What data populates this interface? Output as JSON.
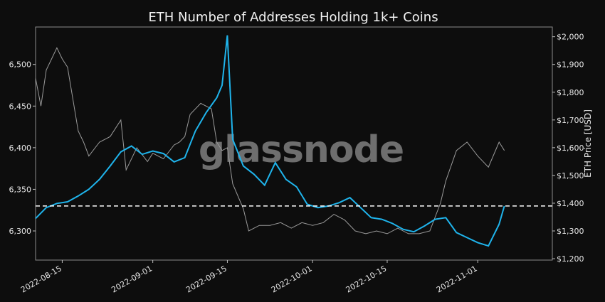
{
  "chart_data": {
    "type": "line",
    "title": "ETH Number of Addresses Holding 1k+ Coins",
    "watermark": "glassnode",
    "x_tick_labels": [
      "2022-08-15",
      "2022-09-01",
      "2022-09-15",
      "2022-10-01",
      "2022-10-15",
      "2022-11-01"
    ],
    "x_ticks": [
      "2022-08-15",
      "2022-09-01",
      "2022-09-15",
      "2022-10-01",
      "2022-10-15",
      "2022-11-01"
    ],
    "xlim": [
      "2022-08-10",
      "2022-11-15"
    ],
    "y_left": {
      "label": "",
      "lim": [
        6265,
        6545
      ],
      "ticks": [
        6300,
        6350,
        6400,
        6450,
        6500
      ],
      "tick_labels": [
        "6,300",
        "6,350",
        "6,400",
        "6,450",
        "6,500"
      ]
    },
    "y_right": {
      "label": "ETH Price [USD]",
      "lim": [
        1195,
        2035
      ],
      "ticks": [
        1200,
        1300,
        1400,
        1500,
        1600,
        1700,
        1800,
        1900,
        2000
      ],
      "tick_labels": [
        "$1,200",
        "$1,300",
        "$1,400",
        "$1,500",
        "$1,600",
        "$1,700",
        "$1,800",
        "$1,900",
        "$2,000"
      ]
    },
    "reference_line": {
      "axis": "left",
      "value": 6330,
      "style": "dashed"
    },
    "series": [
      {
        "name": "",
        "axis": "left",
        "color": "#1fb4ec",
        "x": [
          "2022-08-10",
          "2022-08-12",
          "2022-08-14",
          "2022-08-16",
          "2022-08-18",
          "2022-08-20",
          "2022-08-22",
          "2022-08-24",
          "2022-08-26",
          "2022-08-28",
          "2022-08-30",
          "2022-09-01",
          "2022-09-03",
          "2022-09-05",
          "2022-09-07",
          "2022-09-09",
          "2022-09-11",
          "2022-09-13",
          "2022-09-14",
          "2022-09-15",
          "2022-09-16",
          "2022-09-18",
          "2022-09-20",
          "2022-09-22",
          "2022-09-24",
          "2022-09-26",
          "2022-09-28",
          "2022-09-30",
          "2022-10-02",
          "2022-10-04",
          "2022-10-06",
          "2022-10-08",
          "2022-10-10",
          "2022-10-12",
          "2022-10-14",
          "2022-10-16",
          "2022-10-18",
          "2022-10-20",
          "2022-10-22",
          "2022-10-24",
          "2022-10-26",
          "2022-10-28",
          "2022-10-30",
          "2022-11-01",
          "2022-11-03",
          "2022-11-05",
          "2022-11-06"
        ],
        "y": [
          6315,
          6328,
          6333,
          6335,
          6342,
          6350,
          6362,
          6378,
          6395,
          6402,
          6392,
          6396,
          6393,
          6383,
          6388,
          6420,
          6442,
          6460,
          6475,
          6535,
          6410,
          6378,
          6368,
          6355,
          6382,
          6362,
          6353,
          6332,
          6328,
          6330,
          6334,
          6340,
          6328,
          6316,
          6314,
          6309,
          6302,
          6299,
          6306,
          6314,
          6316,
          6298,
          6292,
          6286,
          6282,
          6308,
          6330
        ]
      },
      {
        "name": "ETH Price [USD]",
        "axis": "right",
        "color": "#9a9a9a",
        "x": [
          "2022-08-10",
          "2022-08-11",
          "2022-08-12",
          "2022-08-13",
          "2022-08-14",
          "2022-08-15",
          "2022-08-16",
          "2022-08-18",
          "2022-08-19",
          "2022-08-20",
          "2022-08-22",
          "2022-08-24",
          "2022-08-26",
          "2022-08-27",
          "2022-08-29",
          "2022-08-31",
          "2022-09-01",
          "2022-09-03",
          "2022-09-05",
          "2022-09-06",
          "2022-09-07",
          "2022-09-08",
          "2022-09-10",
          "2022-09-12",
          "2022-09-13",
          "2022-09-14",
          "2022-09-15",
          "2022-09-16",
          "2022-09-18",
          "2022-09-19",
          "2022-09-21",
          "2022-09-23",
          "2022-09-25",
          "2022-09-27",
          "2022-09-29",
          "2022-10-01",
          "2022-10-03",
          "2022-10-05",
          "2022-10-07",
          "2022-10-09",
          "2022-10-11",
          "2022-10-13",
          "2022-10-15",
          "2022-10-17",
          "2022-10-19",
          "2022-10-21",
          "2022-10-23",
          "2022-10-25",
          "2022-10-26",
          "2022-10-28",
          "2022-10-30",
          "2022-11-01",
          "2022-11-03",
          "2022-11-05",
          "2022-11-06"
        ],
        "y": [
          1850,
          1750,
          1880,
          1920,
          1960,
          1920,
          1890,
          1660,
          1620,
          1570,
          1620,
          1640,
          1700,
          1520,
          1600,
          1550,
          1580,
          1560,
          1610,
          1620,
          1640,
          1720,
          1760,
          1740,
          1620,
          1590,
          1600,
          1470,
          1380,
          1300,
          1320,
          1320,
          1330,
          1310,
          1330,
          1320,
          1330,
          1360,
          1340,
          1300,
          1290,
          1300,
          1290,
          1310,
          1290,
          1290,
          1300,
          1400,
          1480,
          1590,
          1620,
          1570,
          1530,
          1620,
          1590
        ]
      }
    ],
    "grid": false,
    "legend": "none"
  }
}
